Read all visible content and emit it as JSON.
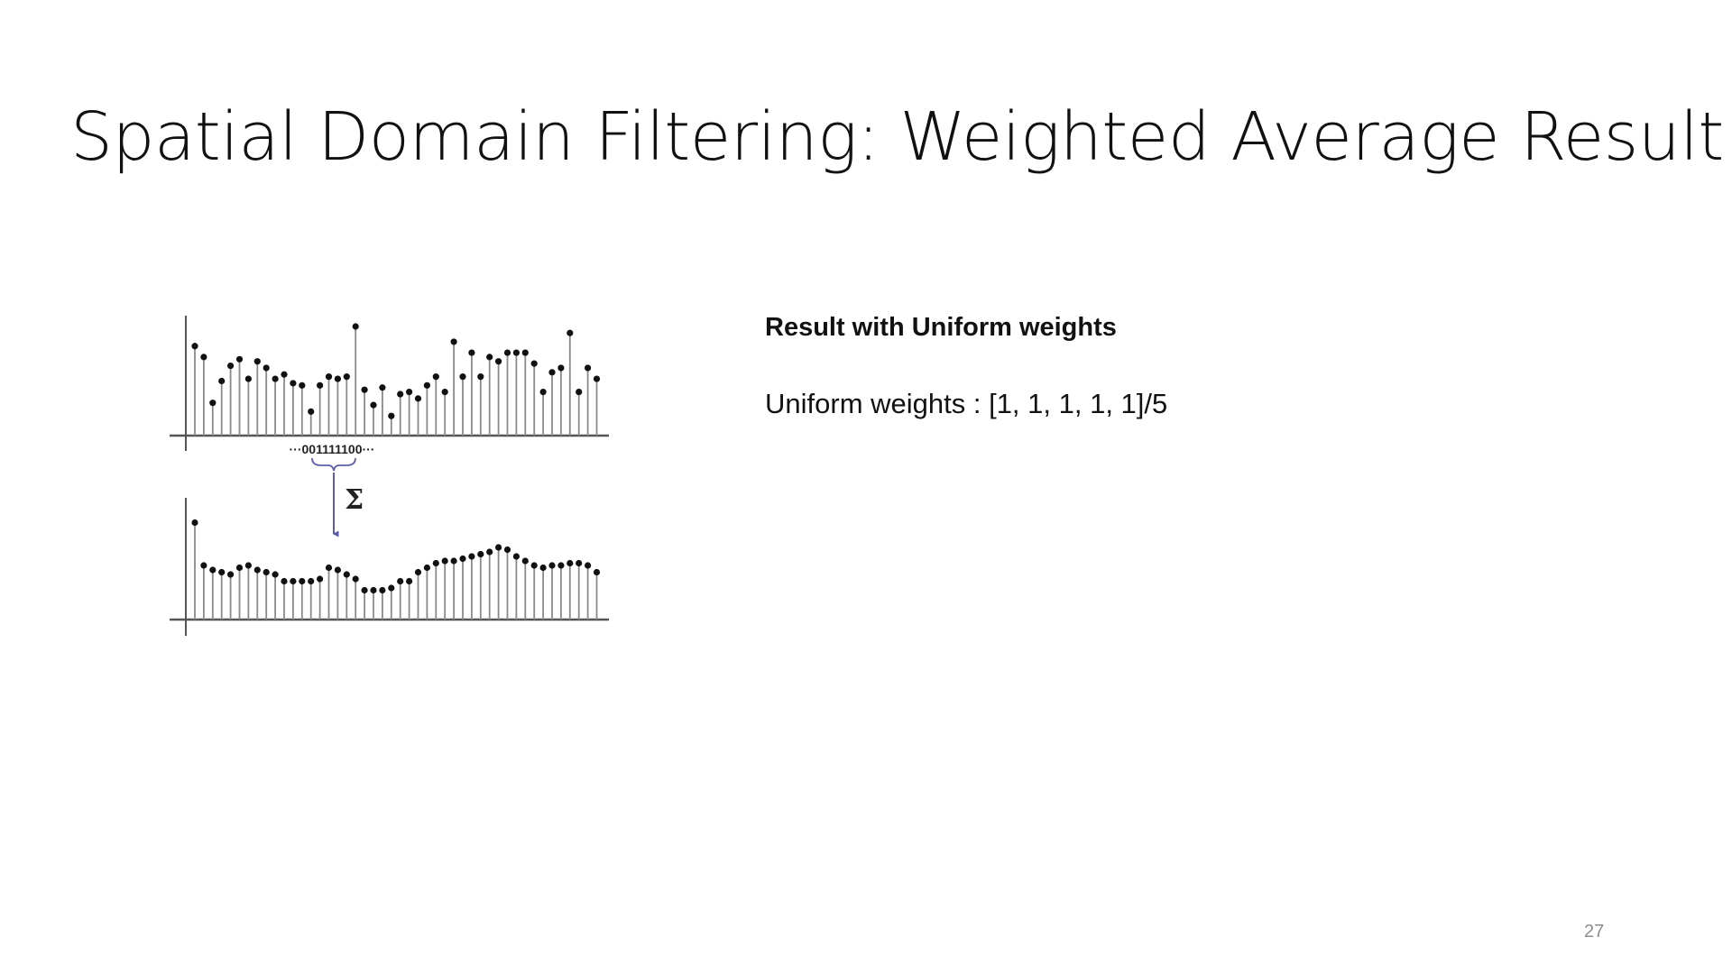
{
  "slide": {
    "title": "Spatial Domain Filtering: Weighted Average Result",
    "heading": "Result with Uniform weights",
    "weights_text": "Uniform weights : [1, 1, 1, 1, 1]/5",
    "page_number": "27"
  },
  "diagram": {
    "kernel_label": "···001111100···",
    "sum_symbol": "Σ",
    "stem_color": "#8a8a8a",
    "dot_color": "#111111",
    "arrow_color": "#5c5ca8",
    "input_signal": [
      82,
      72,
      30,
      50,
      64,
      70,
      52,
      68,
      62,
      52,
      56,
      48,
      46,
      22,
      46,
      54,
      52,
      54,
      100,
      42,
      28,
      44,
      18,
      38,
      40,
      34,
      46,
      54,
      40,
      86,
      54,
      76,
      54,
      72,
      68,
      76,
      76,
      76,
      66,
      40,
      58,
      62,
      94,
      40,
      62,
      52
    ],
    "output_signal": [
      86,
      48,
      44,
      42,
      40,
      46,
      48,
      44,
      42,
      40,
      34,
      34,
      34,
      34,
      36,
      46,
      44,
      40,
      36,
      26,
      26,
      26,
      28,
      34,
      34,
      42,
      46,
      50,
      52,
      52,
      54,
      56,
      58,
      60,
      64,
      62,
      56,
      52,
      48,
      46,
      48,
      48,
      50,
      50,
      48,
      42
    ]
  }
}
